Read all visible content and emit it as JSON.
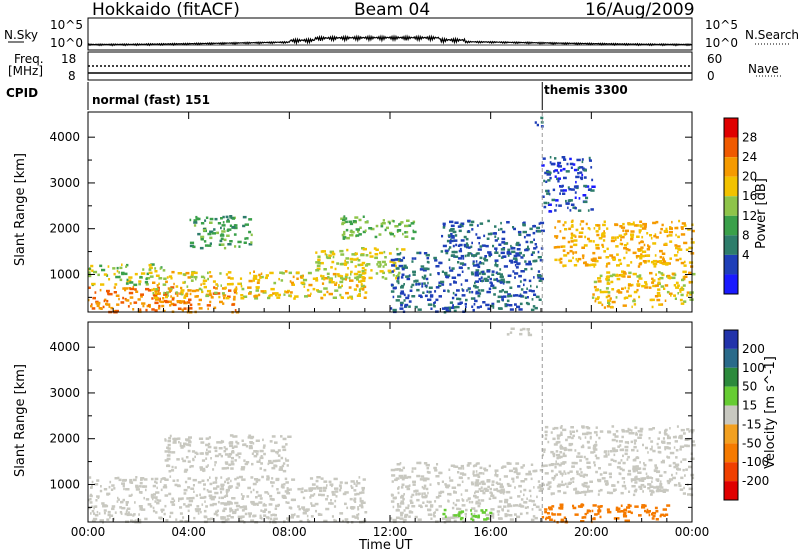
{
  "header": {
    "site": "Hokkaido (fitACF)",
    "beam": "Beam 04",
    "date": "16/Aug/2009"
  },
  "noise_panel": {
    "left_label": "N.Sky",
    "right_label": "N.Search",
    "tick_top": "10^5",
    "tick_bottom": "10^0",
    "right_tick_top": "10^5",
    "right_tick_bottom": "10^0"
  },
  "freq_panel": {
    "left_label_1": "Freq.",
    "left_label_2": "[MHz]",
    "tick_top": "18",
    "tick_bottom": "8",
    "right_label": "Nave",
    "right_tick_top": "60",
    "right_tick_bottom": "0"
  },
  "cpid_panel": {
    "label": "CPID",
    "program_1": "normal (fast) 151",
    "program_2": "themis 3300"
  },
  "power_panel": {
    "ylabel": "Slant Range [km]",
    "yticks": [
      "1000",
      "2000",
      "3000",
      "4000"
    ],
    "colorbar_label": "Power [dB]",
    "colorbar_ticks": [
      "4",
      "8",
      "12",
      "16",
      "20",
      "24",
      "28"
    ],
    "colors": [
      "#1a1aff",
      "#1f3fb8",
      "#2e7d6b",
      "#3aa04a",
      "#8ec44a",
      "#f2c200",
      "#f59a00",
      "#f05a00",
      "#e00000"
    ]
  },
  "velocity_panel": {
    "ylabel": "Slant Range [km]",
    "yticks": [
      "1000",
      "2000",
      "3000",
      "4000"
    ],
    "colorbar_label": "Velocity [m s^-1]",
    "colorbar_ticks": [
      "200",
      "100",
      "50",
      "15",
      "-15",
      "-50",
      "-100",
      "-200"
    ],
    "colors": [
      "#2233aa",
      "#2a6a8a",
      "#2c8a3c",
      "#66cc33",
      "#c8c8c0",
      "#f2a020",
      "#f57a00",
      "#f04000",
      "#e00000"
    ]
  },
  "xaxis": {
    "label": "Time UT",
    "ticks": [
      "00:00",
      "04:00",
      "08:00",
      "12:00",
      "16:00",
      "20:00",
      "00:00"
    ]
  },
  "chart_data": {
    "type": "heatmap",
    "title": "Hokkaido (fitACF) Beam 04 16/Aug/2009",
    "xlabel": "Time UT",
    "ylabel": "Slant Range [km]",
    "x_range_hours": [
      0,
      24
    ],
    "y_range_km": [
      180,
      4550
    ],
    "program_change_hour": 18.05,
    "power_blobs": [
      {
        "t0": 0,
        "t1": 6,
        "r0": 200,
        "r1": 750,
        "dB": 28
      },
      {
        "t0": 2.5,
        "t1": 11,
        "r0": 500,
        "r1": 1100,
        "dB": 22
      },
      {
        "t0": 0,
        "t1": 3,
        "r0": 800,
        "r1": 1250,
        "dB": 18
      },
      {
        "t0": 4,
        "t1": 6.5,
        "r0": 1600,
        "r1": 2300,
        "dB": 14
      },
      {
        "t0": 9,
        "t1": 12.5,
        "r0": 900,
        "r1": 1600,
        "dB": 20
      },
      {
        "t0": 10,
        "t1": 13,
        "r0": 1800,
        "r1": 2300,
        "dB": 16
      },
      {
        "t0": 12,
        "t1": 18,
        "r0": 200,
        "r1": 1500,
        "dB": 8
      },
      {
        "t0": 14,
        "t1": 18,
        "r0": 1400,
        "r1": 2200,
        "dB": 8
      },
      {
        "t0": 18.5,
        "t1": 24,
        "r0": 1200,
        "r1": 2200,
        "dB": 24
      },
      {
        "t0": 20,
        "t1": 24,
        "r0": 300,
        "r1": 1100,
        "dB": 22
      },
      {
        "t0": 18,
        "t1": 20,
        "r0": 2400,
        "r1": 3600,
        "dB": 6
      },
      {
        "t0": 17.5,
        "t1": 18,
        "r0": 4250,
        "r1": 4450,
        "dB": 6
      }
    ],
    "velocity_blobs": [
      {
        "t0": 0,
        "t1": 11,
        "r0": 200,
        "r1": 1200,
        "v": 0
      },
      {
        "t0": 3,
        "t1": 8,
        "r0": 1300,
        "r1": 2100,
        "v": 0
      },
      {
        "t0": 12,
        "t1": 18,
        "r0": 200,
        "r1": 1500,
        "v": 0
      },
      {
        "t0": 14,
        "t1": 16,
        "r0": 250,
        "r1": 500,
        "v": 40
      },
      {
        "t0": 18,
        "t1": 24,
        "r0": 800,
        "r1": 2300,
        "v": 0
      },
      {
        "t0": 18,
        "t1": 23,
        "r0": 200,
        "r1": 600,
        "v": -60
      },
      {
        "t0": 16.5,
        "t1": 17.5,
        "r0": 4250,
        "r1": 4450,
        "v": 0
      }
    ]
  }
}
